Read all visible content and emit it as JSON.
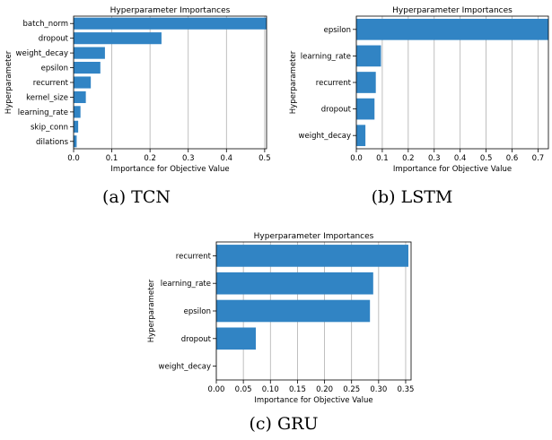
{
  "colors": {
    "bar": "#3184C4",
    "grid": "#B0B0B0",
    "axis": "#000000"
  },
  "chart_data": [
    {
      "type": "bar",
      "orientation": "horizontal",
      "title": "Hyperparameter Importances",
      "xlabel": "Importance for Objective Value",
      "ylabel": "Hyperparameter",
      "caption": "(a) TCN",
      "categories": [
        "batch_norm",
        "dropout",
        "weight_decay",
        "epsilon",
        "recurrent",
        "kernel_size",
        "learning_rate",
        "skip_conn",
        "dilations"
      ],
      "values": [
        0.505,
        0.23,
        0.082,
        0.07,
        0.045,
        0.032,
        0.018,
        0.012,
        0.008
      ],
      "xlim": [
        0,
        0.505
      ],
      "xticks": [
        "0.0",
        "0.1",
        "0.2",
        "0.3",
        "0.4",
        "0.5"
      ],
      "grid": "x"
    },
    {
      "type": "bar",
      "orientation": "horizontal",
      "title": "Hyperparameter Importances",
      "xlabel": "Importance for Objective Value",
      "ylabel": "Hyperparameter",
      "caption": "(b) LSTM",
      "categories": [
        "epsilon",
        "learning_rate",
        "recurrent",
        "dropout",
        "weight_decay"
      ],
      "values": [
        0.74,
        0.095,
        0.075,
        0.07,
        0.035
      ],
      "xlim": [
        0,
        0.74
      ],
      "xticks": [
        "0.0",
        "0.1",
        "0.2",
        "0.3",
        "0.4",
        "0.5",
        "0.6",
        "0.7"
      ],
      "grid": "x"
    },
    {
      "type": "bar",
      "orientation": "horizontal",
      "title": "Hyperparameter Importances",
      "xlabel": "Importance for Objective Value",
      "ylabel": "Hyperparameter",
      "caption": "(c) GRU",
      "categories": [
        "recurrent",
        "learning_rate",
        "epsilon",
        "dropout",
        "weight_decay"
      ],
      "values": [
        0.355,
        0.29,
        0.284,
        0.073,
        0.0
      ],
      "xlim": [
        0,
        0.36
      ],
      "xticks": [
        "0.00",
        "0.05",
        "0.10",
        "0.15",
        "0.20",
        "0.25",
        "0.30",
        "0.35"
      ],
      "grid": "x"
    }
  ]
}
